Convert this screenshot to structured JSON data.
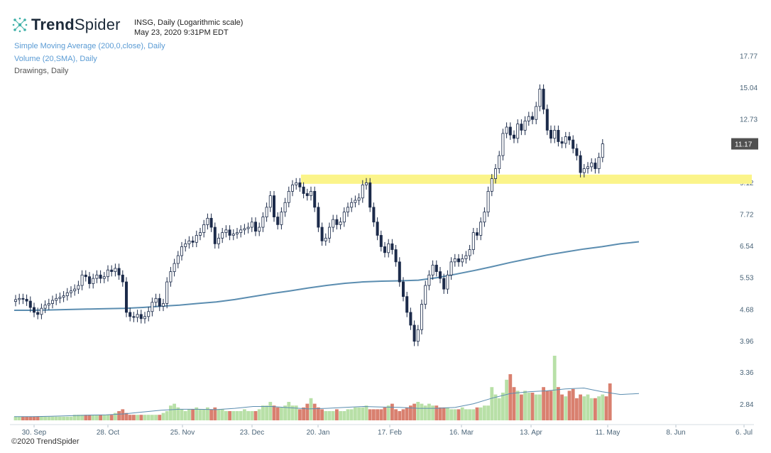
{
  "brand": {
    "name_bold": "Trend",
    "name_rest": "Spider"
  },
  "symbol": {
    "line1": "INSG, Daily (Logarithmic scale)",
    "line2": "May 23, 2020 9:31PM EDT"
  },
  "legend": {
    "sma": "Simple Moving Average (200,0,close), Daily",
    "volume": "Volume (20,SMA), Daily",
    "drawings": "Drawings, Daily"
  },
  "copyright": "©2020 TrendSpider",
  "colors": {
    "up_candle": "#ffffff",
    "down_candle": "#1c2b4a",
    "sma": "#5b8db0",
    "zone": "#fbf48a",
    "vol_up": "#b8e0a7",
    "vol_down": "#d9806f",
    "vol_sma": "#5b8db0"
  },
  "chart_data": {
    "type": "candlestick",
    "scale": "log",
    "price_axis_ticks": [
      "17.77",
      "15.04",
      "12.73",
      "11.17",
      "9.12",
      "7.72",
      "6.54",
      "5.53",
      "4.68",
      "3.96",
      "3.36",
      "2.84"
    ],
    "last_price": "11.17",
    "x_ticks": [
      "30. Sep",
      "28. Oct",
      "25. Nov",
      "23. Dec",
      "20. Jan",
      "17. Feb",
      "16. Mar",
      "13. Apr",
      "11. May",
      "8. Jun",
      "6. Jul"
    ],
    "support_zone": {
      "low": 9.05,
      "high": 9.5
    },
    "closes": [
      4.92,
      4.95,
      4.93,
      4.88,
      4.72,
      4.6,
      4.55,
      4.7,
      4.78,
      4.82,
      4.9,
      4.95,
      4.98,
      5.02,
      5.1,
      5.15,
      5.2,
      5.3,
      5.6,
      5.55,
      5.35,
      5.5,
      5.6,
      5.5,
      5.55,
      5.75,
      5.7,
      5.8,
      5.6,
      5.4,
      4.6,
      4.5,
      4.48,
      4.55,
      4.45,
      4.5,
      4.62,
      4.85,
      4.95,
      4.75,
      4.82,
      5.4,
      5.7,
      5.95,
      6.2,
      6.5,
      6.6,
      6.7,
      6.65,
      6.9,
      7.0,
      7.3,
      7.55,
      7.2,
      6.6,
      6.8,
      7.0,
      7.1,
      6.9,
      6.95,
      7.0,
      7.1,
      7.15,
      7.2,
      7.4,
      7.05,
      7.2,
      7.6,
      8.0,
      8.5,
      7.6,
      7.3,
      7.8,
      8.2,
      8.7,
      9.0,
      9.1,
      8.9,
      8.6,
      8.5,
      8.7,
      8.0,
      7.2,
      6.7,
      6.8,
      7.2,
      7.5,
      7.3,
      7.4,
      7.8,
      8.0,
      8.2,
      8.3,
      8.4,
      9.0,
      9.1,
      8.0,
      7.4,
      6.9,
      6.5,
      6.3,
      6.6,
      6.4,
      6.0,
      5.4,
      5.0,
      4.6,
      4.3,
      3.95,
      4.2,
      4.8,
      5.3,
      5.6,
      5.9,
      5.7,
      5.5,
      5.2,
      5.6,
      6.0,
      6.1,
      6.0,
      6.1,
      6.2,
      6.4,
      7.0,
      6.9,
      7.4,
      7.8,
      8.7,
      9.3,
      9.8,
      10.5,
      11.8,
      12.2,
      11.7,
      11.5,
      12.4,
      12.0,
      12.6,
      12.9,
      12.7,
      13.6,
      14.9,
      13.4,
      12.0,
      11.5,
      12.0,
      11.3,
      11.2,
      11.6,
      11.4,
      10.9,
      10.5,
      9.6,
      9.8,
      9.9,
      10.1,
      9.8,
      10.4,
      11.17
    ],
    "volume": [
      2,
      2,
      2,
      2,
      2,
      2,
      2,
      2,
      2,
      2,
      2,
      2,
      2,
      2,
      2,
      2,
      3,
      3,
      3,
      3,
      3,
      3,
      3,
      3,
      3,
      3,
      3,
      4,
      5,
      6,
      4,
      3,
      3,
      3,
      3,
      3,
      3,
      3,
      3,
      3,
      4,
      5,
      8,
      9,
      7,
      6,
      5,
      6,
      6,
      7,
      6,
      6,
      7,
      6,
      7,
      6,
      6,
      5,
      5,
      5,
      5,
      5,
      6,
      5,
      5,
      5,
      6,
      8,
      8,
      10,
      8,
      7,
      7,
      8,
      10,
      8,
      8,
      6,
      7,
      9,
      12,
      9,
      7,
      6,
      5,
      5,
      5,
      6,
      5,
      5,
      6,
      6,
      7,
      7,
      7,
      8,
      6,
      6,
      6,
      6,
      7,
      8,
      9,
      6,
      5,
      6,
      7,
      8,
      9,
      10,
      9,
      8,
      9,
      8,
      8,
      7,
      7,
      7,
      6,
      6,
      6,
      7,
      6,
      6,
      6,
      7,
      7,
      8,
      8,
      18,
      14,
      12,
      15,
      22,
      25,
      18,
      16,
      14,
      16,
      15,
      15,
      14,
      14,
      18,
      16,
      16,
      35,
      18,
      14,
      13,
      16,
      17,
      12,
      14,
      13,
      14,
      12,
      12,
      13,
      14,
      13,
      20
    ],
    "sma200": [
      4.65,
      4.65,
      4.66,
      4.67,
      4.68,
      4.69,
      4.7,
      4.72,
      4.75,
      4.78,
      4.82,
      4.86,
      4.92,
      5.0,
      5.08,
      5.15,
      5.23,
      5.3,
      5.36,
      5.4,
      5.42,
      5.43,
      5.45,
      5.52,
      5.62,
      5.73,
      5.85,
      5.98,
      6.1,
      6.22,
      6.32,
      6.42,
      6.5,
      6.6,
      6.67
    ],
    "vol_sma": [
      2.0,
      2.0,
      2.2,
      2.5,
      2.8,
      3.0,
      3.5,
      4.5,
      5.5,
      6.0,
      6.0,
      5.8,
      6.5,
      7.5,
      7.5,
      6.8,
      6.2,
      6.5,
      7.0,
      7.5,
      7.2,
      7.0,
      6.5,
      6.5,
      7.0,
      9.0,
      12.0,
      14.5,
      15.5,
      16.0,
      17.0,
      17.5,
      15.5,
      14.0,
      14.5
    ]
  }
}
